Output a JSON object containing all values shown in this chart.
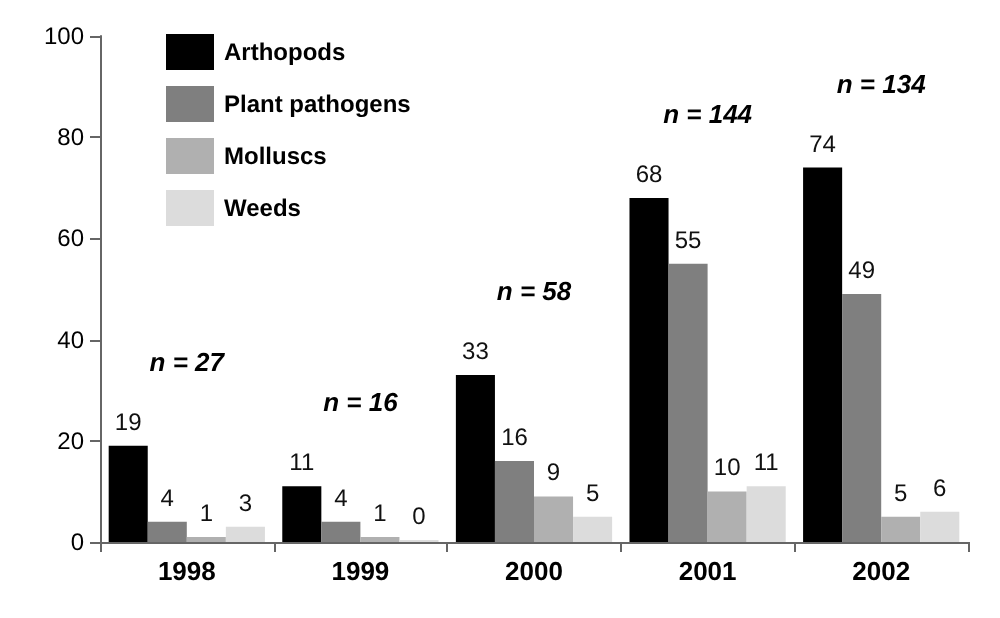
{
  "chart_data": {
    "type": "bar",
    "categories": [
      "1998",
      "1999",
      "2000",
      "2001",
      "2002"
    ],
    "series": [
      {
        "name": "Arthopods",
        "color": "#000000",
        "values": [
          19,
          11,
          33,
          68,
          74
        ]
      },
      {
        "name": "Plant pathogens",
        "color": "#7f7f7f",
        "values": [
          4,
          4,
          16,
          55,
          49
        ]
      },
      {
        "name": "Molluscs",
        "color": "#b0b0b0",
        "values": [
          1,
          1,
          9,
          10,
          5
        ]
      },
      {
        "name": "Weeds",
        "color": "#dcdcdc",
        "values": [
          3,
          0,
          5,
          11,
          6
        ]
      }
    ],
    "ylim": [
      0,
      100
    ],
    "yticks": [
      0,
      20,
      40,
      60,
      80,
      100
    ],
    "grid": false,
    "legend": "top left",
    "data_labels": true,
    "annotations": [
      "n = 27",
      "n = 16",
      "n = 58",
      "n = 144",
      "n = 134"
    ]
  }
}
